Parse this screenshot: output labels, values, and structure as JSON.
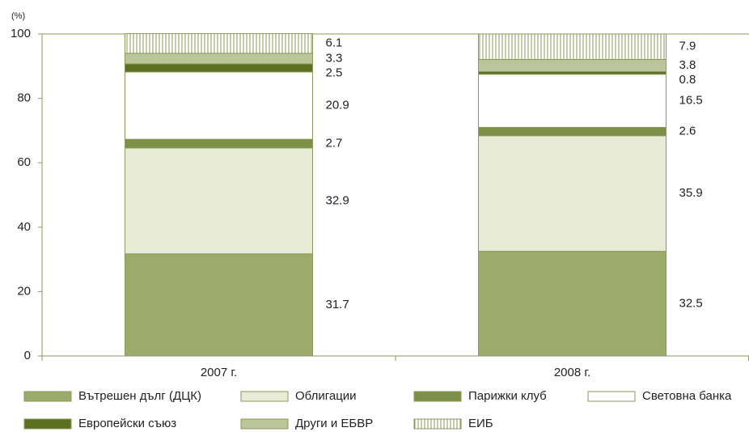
{
  "chart_data": {
    "type": "stacked_bar",
    "y_label": "(%)",
    "categories": [
      "2007 г.",
      "2008 г."
    ],
    "series": [
      {
        "name": "Вътрешен дълг (ДЦК)",
        "color": "#9caa6a",
        "values": [
          31.7,
          32.5
        ]
      },
      {
        "name": "Облигации",
        "color": "#e8ecd6",
        "values": [
          32.9,
          35.9
        ]
      },
      {
        "name": "Парижки клуб",
        "color": "#7e8f48",
        "values": [
          2.7,
          2.6
        ]
      },
      {
        "name": "Световна банка",
        "color": "#ffffff",
        "values": [
          20.9,
          16.5
        ]
      },
      {
        "name": "Европейски съюз",
        "color": "#5a7020",
        "values": [
          2.5,
          0.8
        ]
      },
      {
        "name": "Други и ЕБВР",
        "color": "#bcc49a",
        "values": [
          3.3,
          3.8
        ]
      },
      {
        "name": "ЕИБ",
        "color": "url(#hatch)",
        "values": [
          6.1,
          7.9
        ]
      }
    ],
    "ylim": [
      0,
      100
    ],
    "yticks": [
      0,
      20,
      40,
      60,
      80,
      100
    ],
    "grid": false
  }
}
